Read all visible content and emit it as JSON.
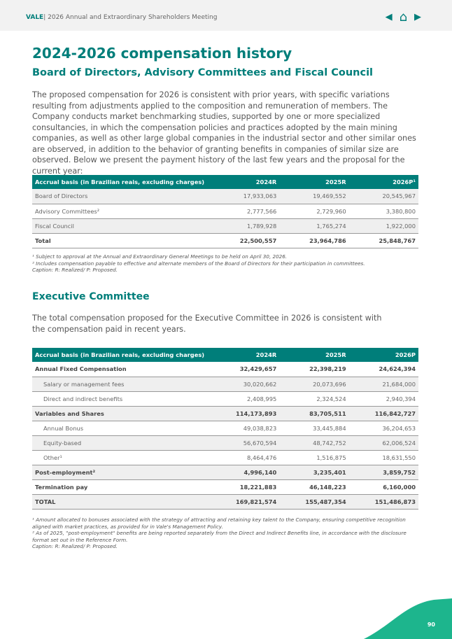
{
  "header": {
    "brand": "VALE",
    "divider": "|",
    "title": "2026 Annual and Extraordinary Shareholders Meeting",
    "prev": "◀",
    "home": "⌂",
    "next": "▶"
  },
  "title": "2024-2026 compensation history",
  "subtitle": "Board of Directors, Advisory Committees and Fiscal Council",
  "intro": "The proposed compensation for 2026 is consistent with prior years, with specific variations resulting from adjustments applied to the composition and remuneration of members. The Company conducts market benchmarking studies, supported by one or more specialized consultancies, in which the compensation policies and practices adopted by the main mining companies, as well as other large global companies in the industrial sector and other similar ones are observed, in addition to the behavior of granting benefits in companies of similar size are observed. Below we present the payment history of the last few years and the proposal for the current year:",
  "table1": {
    "headers": [
      "Accrual basis (in Brazilian reais, excluding charges)",
      "2024R",
      "2025R",
      "2026P¹"
    ],
    "rows": [
      {
        "cells": [
          "Board of Directors",
          "17,933,063",
          "19,469,552",
          "20,545,967"
        ],
        "style": "g"
      },
      {
        "cells": [
          "Advisory Committees²",
          "2,777,566",
          "2,729,960",
          "3,380,800"
        ],
        "style": ""
      },
      {
        "cells": [
          "Fiscal Council",
          "1,789,928",
          "1,765,274",
          "1,922,000"
        ],
        "style": "g"
      },
      {
        "cells": [
          "Total",
          "22,500,557",
          "23,964,786",
          "25,848,767"
        ],
        "style": "b"
      }
    ]
  },
  "notes1": [
    "¹ Subject to approval at the Annual and Extraordinary General Meetings to be held on April 30, 2026.",
    "² Includes compensation payable to effective and alternate members of the Board of Directors for their participation in committees.",
    "Caption: R: Realized/ P: Proposed."
  ],
  "exec_title": "Executive Committee",
  "exec_text": "The total compensation proposed for the Executive Committee in 2026 is consistent with the compensation paid in recent years.",
  "table2": {
    "headers": [
      "Accrual basis (in Brazilian reais, excluding charges)",
      "2024R",
      "2025R",
      "2026P"
    ],
    "rows": [
      {
        "cells": [
          "Annual Fixed Compensation",
          "32,429,657",
          "22,398,219",
          "24,624,394"
        ],
        "style": "b"
      },
      {
        "cells": [
          "Salary or management fees",
          "30,020,662",
          "20,073,696",
          "21,684,000"
        ],
        "style": "g i"
      },
      {
        "cells": [
          "Direct and indirect benefits",
          "2,408,995",
          "2,324,524",
          "2,940,394"
        ],
        "style": "i"
      },
      {
        "cells": [
          "Variables and Shares",
          "114,173,893",
          "83,705,511",
          "116,842,727"
        ],
        "style": "g b"
      },
      {
        "cells": [
          "Annual Bonus",
          "49,038,823",
          "33,445,884",
          "36,204,653"
        ],
        "style": "i"
      },
      {
        "cells": [
          "Equity-based",
          "56,670,594",
          "48,742,752",
          "62,006,524"
        ],
        "style": "g i"
      },
      {
        "cells": [
          "Other¹",
          "8,464,476",
          "1,516,875",
          "18,631,550"
        ],
        "style": "i"
      },
      {
        "cells": [
          "Post-employment²",
          "4,996,140",
          "3,235,401",
          "3,859,752"
        ],
        "style": "g b"
      },
      {
        "cells": [
          "Termination pay",
          "18,221,883",
          "46,148,223",
          "6,160,000"
        ],
        "style": "b"
      },
      {
        "cells": [
          "TOTAL",
          "169,821,574",
          "155,487,354",
          "151,486,873"
        ],
        "style": "g b"
      }
    ]
  },
  "notes2": [
    "¹ Amount allocated to bonuses associated with the strategy of attracting and retaining key talent to the Company, ensuring competitive recognition aligned with market practices, as provided for in Vale's Management Policy.",
    "² As of 2025, \"post-employment\" benefits are being reported separately from the Direct and Indirect Benefits line, in accordance with the disclosure format set out in the Reference Form.",
    "Caption: R: Realized/ P: Proposed."
  ],
  "page_number": "90",
  "colors": {
    "accent": "#007e7a",
    "wave": "#1db58d"
  }
}
